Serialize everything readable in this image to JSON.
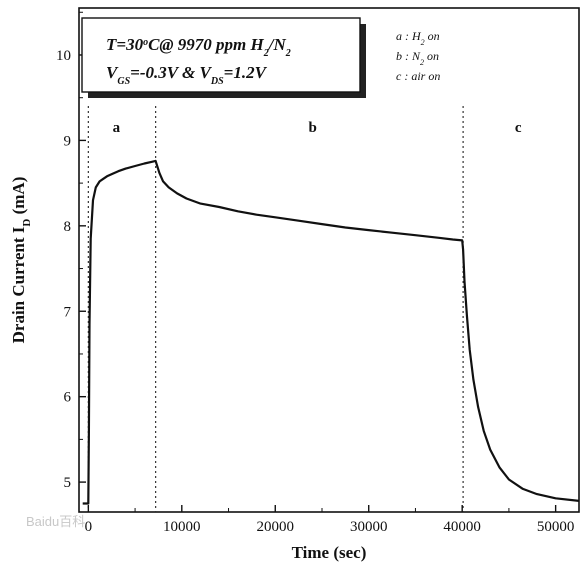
{
  "chart_data": {
    "type": "line",
    "xlabel": "Time (sec)",
    "ylabel": "Drain Current I",
    "ylabel_sub": "D",
    "ylabel_unit": " (mA)",
    "xlim": [
      -1000,
      52500
    ],
    "ylim": [
      4.65,
      10.55
    ],
    "xticks": [
      0,
      10000,
      20000,
      30000,
      40000,
      50000
    ],
    "yticks": [
      5,
      6,
      7,
      8,
      9,
      10
    ],
    "grid": false,
    "regions": [
      {
        "label": "a",
        "x": 3000
      },
      {
        "label": "b",
        "x": 24000
      },
      {
        "label": "c",
        "x": 46000
      }
    ],
    "event_lines": [
      0,
      7200,
      40100
    ],
    "legend": [
      {
        "key": "a",
        "sep": " : ",
        "gas": "H",
        "sub": "2",
        "suffix": " on"
      },
      {
        "key": "b",
        "sep": " : ",
        "gas": "N",
        "sub": "2",
        "suffix": " on"
      },
      {
        "key": "c",
        "sep": " : ",
        "gas": "air",
        "sub": "",
        "suffix": " on"
      }
    ],
    "info_box": {
      "line1": [
        "T=30",
        "o",
        "C@ 9970 ppm H",
        "2",
        "/N",
        "2"
      ],
      "line2": [
        "V",
        "GS",
        "=-0.3V & V",
        "DS",
        "=1.2V"
      ]
    },
    "series": [
      {
        "x": [
          -600,
          -300,
          0,
          0,
          60,
          120,
          250,
          500,
          800,
          1200,
          1600,
          2000,
          2600,
          3200,
          4000,
          5000,
          6000,
          6800,
          7200,
          7600,
          8000,
          8600,
          9500,
          10500,
          12000,
          14000,
          16000,
          18000,
          20000,
          22500,
          25000,
          27500,
          30000,
          32500,
          35000,
          37500,
          39000,
          40000,
          40100,
          40250,
          40500,
          40800,
          41200,
          41700,
          42300,
          43000,
          44000,
          45000,
          46500,
          48000,
          50000,
          52500
        ],
        "values": [
          4.75,
          4.75,
          4.75,
          4.75,
          5.6,
          6.85,
          7.85,
          8.3,
          8.45,
          8.52,
          8.55,
          8.58,
          8.61,
          8.64,
          8.67,
          8.7,
          8.73,
          8.75,
          8.76,
          8.62,
          8.52,
          8.45,
          8.38,
          8.32,
          8.26,
          8.22,
          8.17,
          8.13,
          8.1,
          8.06,
          8.02,
          7.98,
          7.95,
          7.92,
          7.89,
          7.86,
          7.84,
          7.83,
          7.72,
          7.35,
          6.95,
          6.55,
          6.2,
          5.88,
          5.6,
          5.38,
          5.17,
          5.03,
          4.92,
          4.86,
          4.81,
          4.78
        ]
      }
    ]
  },
  "watermark": "Baidu百科"
}
